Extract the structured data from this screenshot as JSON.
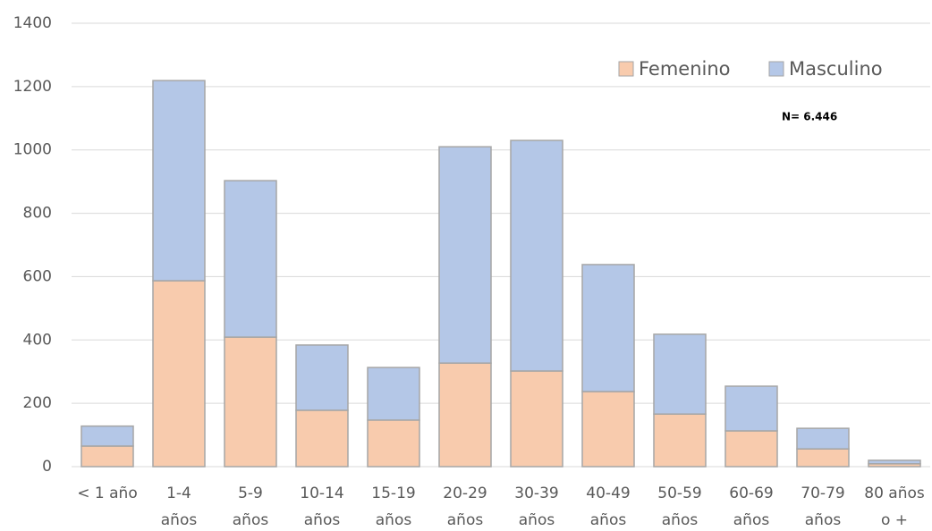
{
  "chart_data": {
    "type": "stacked_bar",
    "categories": [
      [
        "< 1 año"
      ],
      [
        "1-4",
        "años"
      ],
      [
        "5-9",
        "años"
      ],
      [
        "10-14",
        "años"
      ],
      [
        "15-19",
        "años"
      ],
      [
        "20-29",
        "años"
      ],
      [
        "30-39",
        "años"
      ],
      [
        "40-49",
        "años"
      ],
      [
        "50-59",
        "años"
      ],
      [
        "60-69",
        "años"
      ],
      [
        "70-79",
        "años"
      ],
      [
        "80 años",
        "o +"
      ]
    ],
    "series": [
      {
        "name": "Femenino",
        "color": "#f8cbad",
        "values": [
          65,
          587,
          409,
          178,
          147,
          327,
          302,
          237,
          166,
          113,
          56,
          9
        ]
      },
      {
        "name": "Masculino",
        "color": "#b4c7e7",
        "values": [
          63,
          632,
          494,
          206,
          166,
          683,
          728,
          401,
          252,
          141,
          65,
          11
        ]
      }
    ],
    "ylim": [
      0,
      1400
    ],
    "yticks": [
      0,
      200,
      400,
      600,
      800,
      1000,
      1200,
      1400
    ],
    "grid": true,
    "annotation": "N= 6.446",
    "legend": "top-right"
  }
}
